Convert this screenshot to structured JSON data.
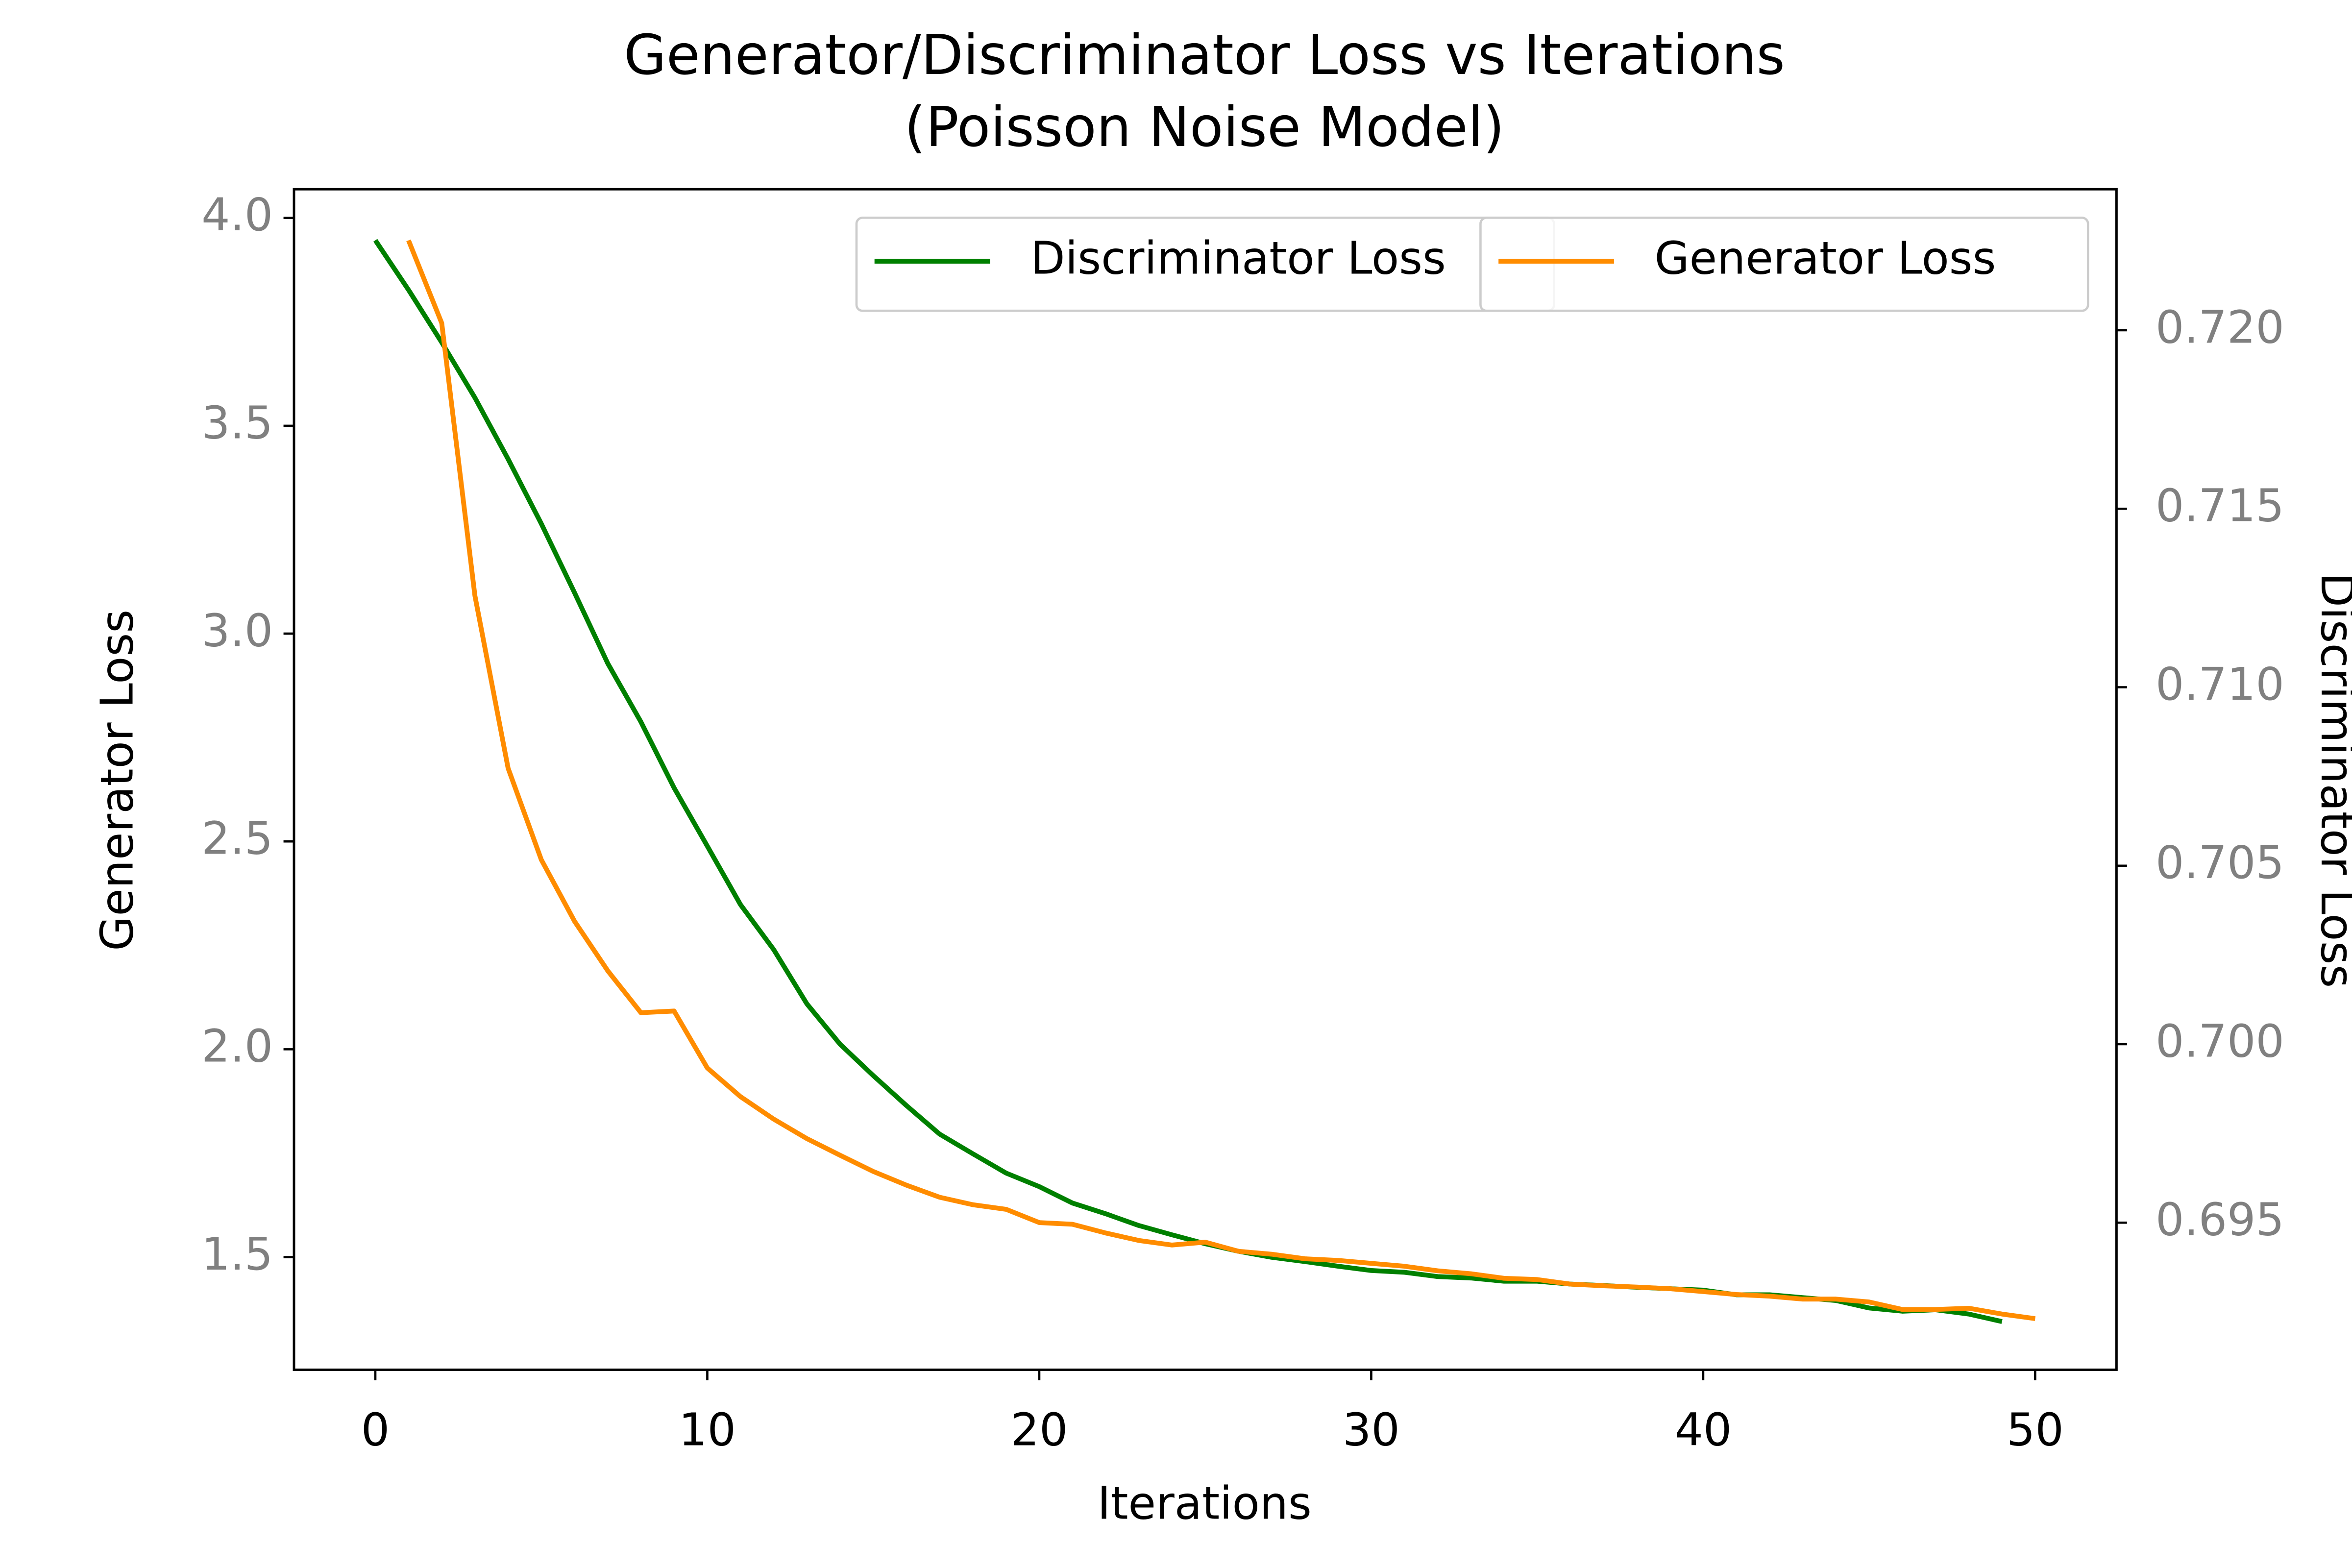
{
  "chart_data": {
    "type": "line",
    "title": "Generator/Discriminator Loss vs Iterations\n(Poisson Noise Model)",
    "xlabel": "Iterations",
    "ylabel": "Generator Loss",
    "y2label": "Discriminator Loss",
    "xlim": [
      -2.45,
      52.45
    ],
    "xticks": [
      0,
      10,
      20,
      30,
      40,
      50
    ],
    "ylim": [
      1.229,
      4.069
    ],
    "yticks": [
      1.5,
      {
        "value": 2,
        "label": "2.0"
      },
      2.5,
      {
        "value": 3,
        "label": "3.0"
      },
      3.5,
      {
        "value": 4,
        "label": "4.0"
      }
    ],
    "y2lim": [
      0.69088,
      0.72395
    ],
    "y2ticks": [
      0.695,
      {
        "value": 0.7,
        "label": "0.700"
      },
      0.705,
      {
        "value": 0.71,
        "label": "0.710"
      },
      0.715,
      {
        "value": 0.72,
        "label": "0.720"
      }
    ],
    "grid": false,
    "legend": "upper right",
    "series": [
      {
        "name": "Discriminator Loss",
        "color": "#008000",
        "axis": "y2",
        "x": [
          0,
          1,
          2,
          3,
          4,
          5,
          6,
          7,
          8,
          9,
          10,
          11,
          12,
          13,
          14,
          15,
          16,
          17,
          18,
          19,
          20,
          21,
          22,
          23,
          24,
          25,
          26,
          27,
          28,
          29,
          30,
          31,
          32,
          33,
          34,
          35,
          36,
          37,
          38,
          39,
          40,
          41,
          42,
          43,
          44,
          45,
          46,
          47,
          48,
          49
        ],
        "values": [
          0.72252,
          0.72113,
          0.71966,
          0.71811,
          0.71639,
          0.71458,
          0.71265,
          0.71067,
          0.70903,
          0.70718,
          0.70555,
          0.70391,
          0.70265,
          0.70113,
          0.7,
          0.69912,
          0.69828,
          0.69748,
          0.69693,
          0.69639,
          0.69601,
          0.69555,
          0.69525,
          0.69492,
          0.69466,
          0.69441,
          0.6942,
          0.69403,
          0.69391,
          0.69378,
          0.69366,
          0.69361,
          0.69349,
          0.69345,
          0.69336,
          0.69336,
          0.69328,
          0.69324,
          0.69319,
          0.69315,
          0.69311,
          0.69298,
          0.69298,
          0.6929,
          0.69282,
          0.69261,
          0.69252,
          0.69256,
          0.69244,
          0.69223
        ]
      },
      {
        "name": "Generator Loss",
        "color": "#ff8c00",
        "axis": "y",
        "x": [
          1,
          2,
          3,
          4,
          5,
          6,
          7,
          8,
          9,
          10,
          11,
          12,
          13,
          14,
          15,
          16,
          17,
          18,
          19,
          20,
          21,
          22,
          23,
          24,
          25,
          26,
          27,
          28,
          29,
          30,
          31,
          32,
          33,
          34,
          35,
          36,
          37,
          38,
          39,
          40,
          41,
          42,
          43,
          44,
          45,
          46,
          47,
          48,
          49,
          50
        ],
        "values": [
          3.946,
          3.747,
          3.091,
          2.676,
          2.456,
          2.308,
          2.189,
          2.088,
          2.092,
          1.955,
          1.886,
          1.832,
          1.785,
          1.745,
          1.706,
          1.673,
          1.644,
          1.626,
          1.615,
          1.583,
          1.579,
          1.558,
          1.54,
          1.529,
          1.536,
          1.514,
          1.507,
          1.496,
          1.492,
          1.485,
          1.478,
          1.467,
          1.46,
          1.449,
          1.446,
          1.435,
          1.431,
          1.428,
          1.424,
          1.417,
          1.41,
          1.406,
          1.399,
          1.399,
          1.392,
          1.374,
          1.374,
          1.377,
          1.363,
          1.352
        ]
      }
    ]
  }
}
